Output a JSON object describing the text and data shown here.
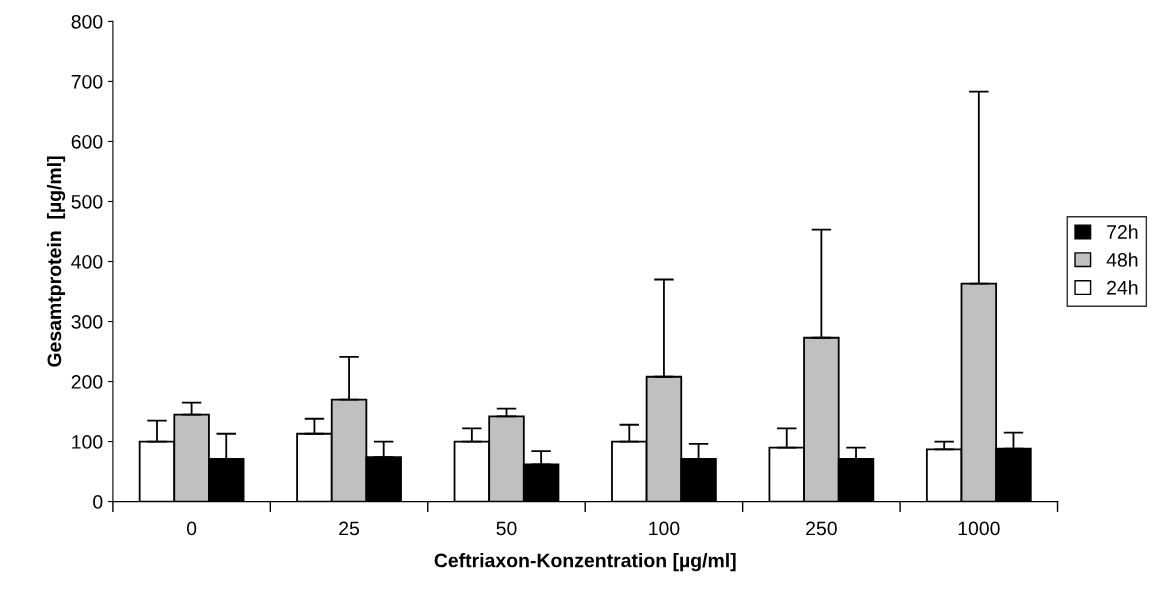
{
  "chart_data": {
    "type": "bar",
    "xlabel": "Ceftriaxon-Konzentration [µg/ml]",
    "ylabel": "Gesamtprotein  [µg/ml]",
    "categories": [
      "0",
      "25",
      "50",
      "100",
      "250",
      "1000"
    ],
    "series": [
      {
        "name": "24h",
        "color": "#ffffff",
        "values": [
          100,
          113,
          100,
          100,
          90,
          87
        ],
        "errors": [
          35,
          25,
          22,
          28,
          32,
          13
        ]
      },
      {
        "name": "48h",
        "color": "#c0c0c0",
        "values": [
          145,
          170,
          142,
          208,
          273,
          363
        ],
        "errors": [
          20,
          71,
          13,
          162,
          180,
          320
        ]
      },
      {
        "name": "72h",
        "color": "#000000",
        "values": [
          71,
          74,
          62,
          71,
          71,
          88
        ],
        "errors": [
          42,
          26,
          22,
          25,
          19,
          27
        ]
      }
    ],
    "ylim": [
      0,
      800
    ],
    "yticks": [
      0,
      100,
      200,
      300,
      400,
      500,
      600,
      700,
      800
    ],
    "grid": false,
    "legend": "right"
  }
}
